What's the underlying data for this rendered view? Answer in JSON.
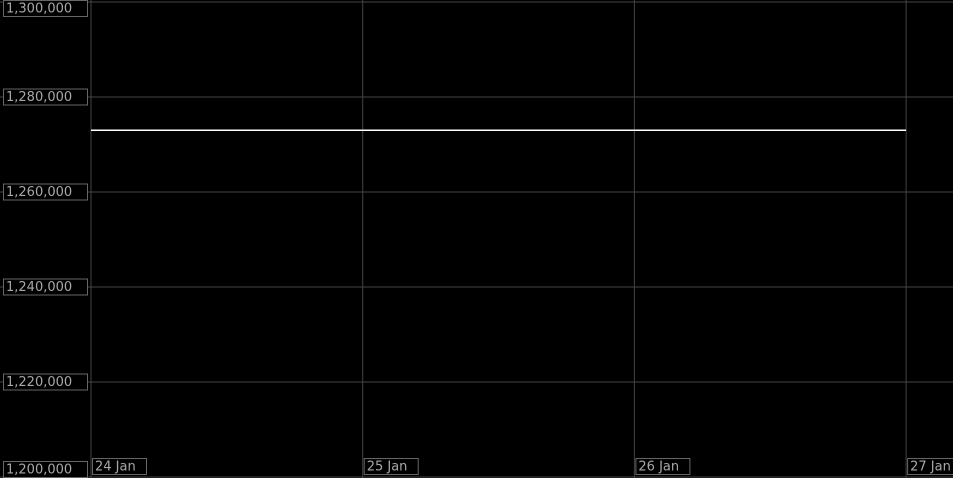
{
  "chart_data": {
    "type": "line",
    "x": [
      "24 Jan",
      "25 Jan",
      "26 Jan",
      "27 Jan"
    ],
    "series": [
      {
        "color": "#ffffff",
        "values": [
          1273000,
          1273000,
          1273000,
          1273000
        ]
      }
    ],
    "ylim": [
      1200000,
      1300000
    ],
    "yticks": [
      {
        "value": 1200000,
        "label": "1,200,000"
      },
      {
        "value": 1220000,
        "label": "1,220,000"
      },
      {
        "value": 1240000,
        "label": "1,240,000"
      },
      {
        "value": 1260000,
        "label": "1,260,000"
      },
      {
        "value": 1280000,
        "label": "1,280,000"
      },
      {
        "value": 1300000,
        "label": "1,300,000"
      }
    ],
    "grid": true
  }
}
